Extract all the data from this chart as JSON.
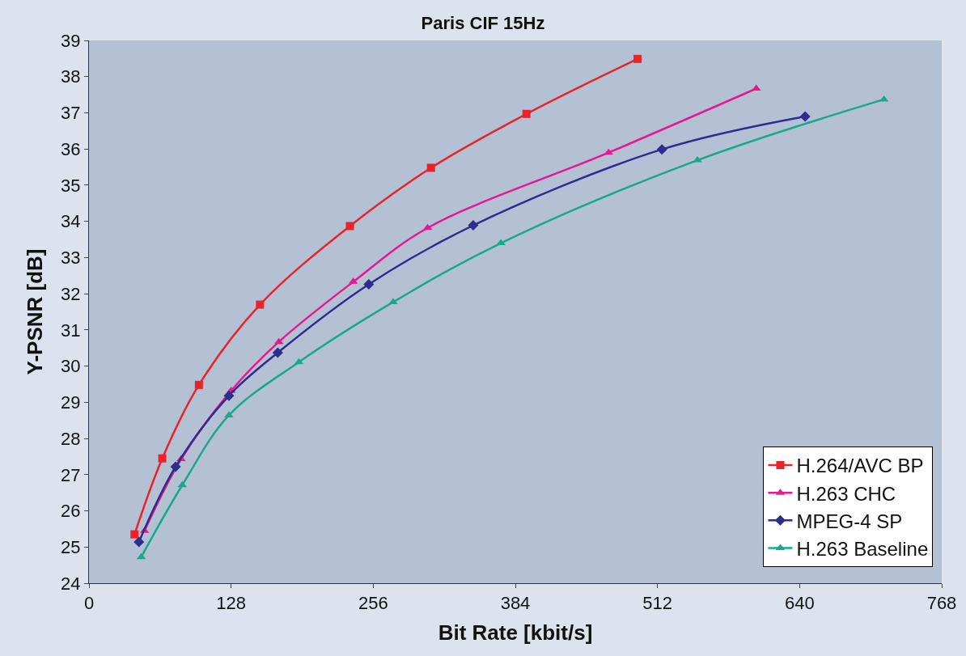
{
  "chart_data": {
    "type": "line",
    "title": "Paris CIF 15Hz",
    "xlabel": "Bit Rate [kbit/s]",
    "ylabel": "Y-PSNR [dB]",
    "xlim": [
      0,
      768
    ],
    "xticks": [
      0,
      128,
      256,
      384,
      512,
      640,
      768
    ],
    "ylim": [
      24,
      39
    ],
    "yticks": [
      24,
      25,
      26,
      27,
      28,
      29,
      30,
      31,
      32,
      33,
      34,
      35,
      36,
      37,
      38,
      39
    ],
    "grid": false,
    "legend": "bottom right",
    "series": [
      {
        "name": "H.264/AVC BP",
        "color": "#e8232a",
        "marker": "square",
        "x": [
          41,
          66,
          99,
          154,
          235,
          308,
          394,
          494
        ],
        "values": [
          25.35,
          27.45,
          29.48,
          31.7,
          33.87,
          35.48,
          36.97,
          38.49
        ]
      },
      {
        "name": "H.263 CHC",
        "color": "#e6198c",
        "marker": "triangle",
        "x": [
          50,
          83,
          128,
          171,
          238,
          305,
          468,
          601
        ],
        "values": [
          25.45,
          27.43,
          29.32,
          30.67,
          32.33,
          33.82,
          35.9,
          37.67
        ]
      },
      {
        "name": "MPEG-4 SP",
        "color": "#2b2e8c",
        "marker": "diamond",
        "x": [
          45,
          78,
          126,
          170,
          252,
          346,
          516,
          645
        ],
        "values": [
          25.14,
          27.22,
          29.18,
          30.37,
          32.26,
          33.89,
          35.99,
          36.9
        ]
      },
      {
        "name": "H.263 Baseline",
        "color": "#1aa88a",
        "marker": "triangle",
        "x": [
          47,
          84,
          126,
          189,
          274,
          371,
          548,
          716
        ],
        "values": [
          24.72,
          26.71,
          28.64,
          30.11,
          31.77,
          33.4,
          35.69,
          37.37
        ]
      }
    ]
  }
}
